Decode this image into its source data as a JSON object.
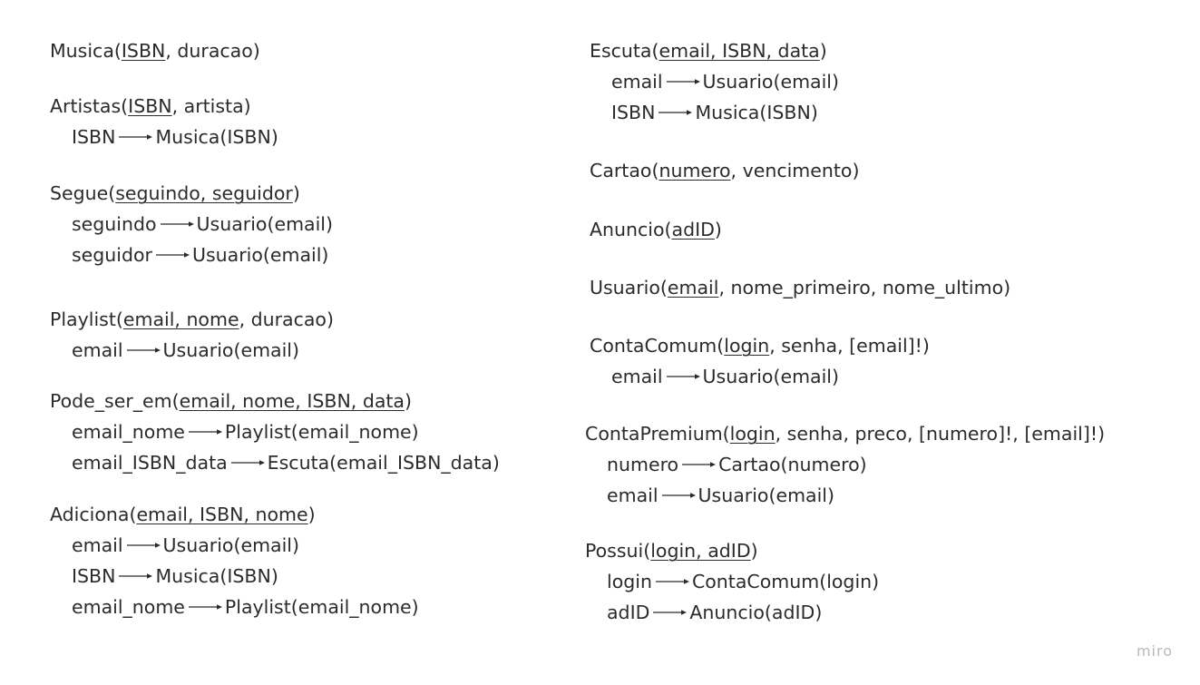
{
  "relations": [
    {
      "id": "musica",
      "name": "Musica",
      "pk": "ISBN",
      "rest": ", duracao",
      "fks": []
    },
    {
      "id": "artistas",
      "name": "Artistas",
      "pk": "ISBN",
      "rest": ", artista",
      "fks": [
        {
          "attr": "ISBN",
          "target": "Musica(ISBN)"
        }
      ]
    },
    {
      "id": "segue",
      "name": "Segue",
      "pk": "seguindo, seguidor",
      "rest": "",
      "fks": [
        {
          "attr": "seguindo",
          "target": "Usuario(email)"
        },
        {
          "attr": "seguidor",
          "target": "Usuario(email)"
        }
      ]
    },
    {
      "id": "playlist",
      "name": "Playlist",
      "pk": "email, nome",
      "rest": ", duracao",
      "fks": [
        {
          "attr": "email",
          "target": "Usuario(email)"
        }
      ]
    },
    {
      "id": "pode-ser-em",
      "name": "Pode_ser_em",
      "pk": "email, nome, ISBN, data",
      "rest": "",
      "fks": [
        {
          "attr": "email_nome",
          "target": "Playlist(email_nome)"
        },
        {
          "attr": "email_ISBN_data",
          "target": "Escuta(email_ISBN_data)"
        }
      ]
    },
    {
      "id": "adiciona",
      "name": "Adiciona",
      "pk": "email, ISBN, nome",
      "rest": "",
      "fks": [
        {
          "attr": "email",
          "target": "Usuario(email)"
        },
        {
          "attr": "ISBN",
          "target": "Musica(ISBN)"
        },
        {
          "attr": "email_nome",
          "target": "Playlist(email_nome)"
        }
      ]
    },
    {
      "id": "escuta",
      "name": "Escuta",
      "pk": "email, ISBN, data",
      "rest": "",
      "fks": [
        {
          "attr": "email",
          "target": "Usuario(email)"
        },
        {
          "attr": "ISBN",
          "target": "Musica(ISBN)"
        }
      ]
    },
    {
      "id": "cartao",
      "name": "Cartao",
      "pk": "numero",
      "rest": ", vencimento",
      "fks": []
    },
    {
      "id": "anuncio",
      "name": "Anuncio",
      "pk": "adID",
      "rest": "",
      "fks": []
    },
    {
      "id": "usuario",
      "name": "Usuario",
      "pk": "email",
      "rest": ", nome_primeiro, nome_ultimo",
      "fks": []
    },
    {
      "id": "contacomum",
      "name": "ContaComum",
      "pk": "login",
      "rest": ", senha, [email]!",
      "fks": [
        {
          "attr": "email",
          "target": "Usuario(email)"
        }
      ]
    },
    {
      "id": "contapremium",
      "name": "ContaPremium",
      "pk": "login",
      "rest": ", senha, preco, [numero]!, [email]!",
      "fks": [
        {
          "attr": "numero",
          "target": "Cartao(numero)"
        },
        {
          "attr": "email",
          "target": "Usuario(email)"
        }
      ]
    },
    {
      "id": "possui",
      "name": "Possui",
      "pk": "login, adID",
      "rest": "",
      "fks": [
        {
          "attr": "login",
          "target": "ContaComum(login)"
        },
        {
          "attr": "adID",
          "target": "Anuncio(adID)"
        }
      ]
    }
  ],
  "watermark": "miro",
  "colors": {
    "text": "#2b2b2b",
    "watermark": "#b9b9b9",
    "background": "#ffffff"
  }
}
